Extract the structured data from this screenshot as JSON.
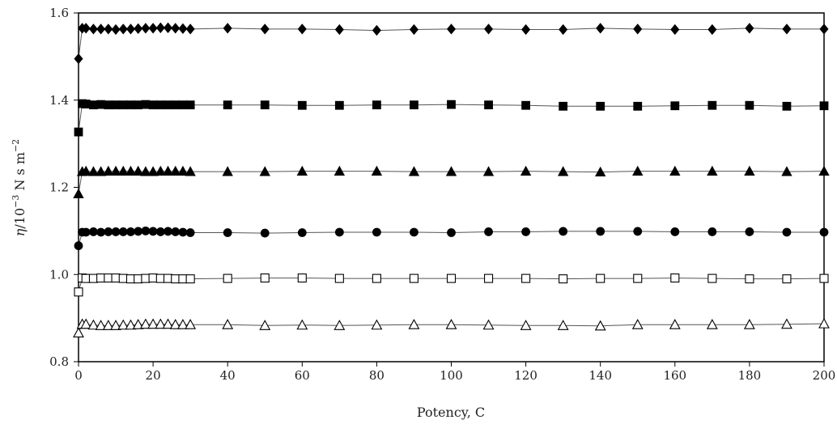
{
  "chart_data": {
    "type": "scatter",
    "xlabel": "Potency, C",
    "ylabel_parts": {
      "symbol": "η",
      "unit": "/10",
      "exp1": "−3",
      "mid": " N s m",
      "exp2": "−2"
    },
    "xlim": [
      0,
      200
    ],
    "ylim": [
      0.8,
      1.6
    ],
    "xticks": [
      "0",
      "20",
      "40",
      "60",
      "80",
      "100",
      "120",
      "140",
      "160",
      "180",
      "200"
    ],
    "yticks": [
      "0.8",
      "1.0",
      "1.2",
      "1.4",
      "1.6"
    ],
    "grid": false,
    "legend": "none",
    "x": [
      0,
      1,
      2,
      4,
      6,
      8,
      10,
      12,
      14,
      16,
      18,
      20,
      22,
      24,
      26,
      28,
      30,
      40,
      50,
      60,
      70,
      80,
      90,
      100,
      110,
      120,
      130,
      140,
      150,
      160,
      170,
      180,
      190,
      200
    ],
    "series": [
      {
        "marker": "filled-diamond",
        "values": [
          1.495,
          1.565,
          1.565,
          1.563,
          1.563,
          1.563,
          1.562,
          1.563,
          1.563,
          1.564,
          1.565,
          1.565,
          1.566,
          1.566,
          1.565,
          1.564,
          1.563,
          1.565,
          1.563,
          1.563,
          1.562,
          1.56,
          1.562,
          1.563,
          1.563,
          1.562,
          1.562,
          1.565,
          1.563,
          1.562,
          1.562,
          1.565,
          1.563,
          1.563
        ]
      },
      {
        "marker": "filled-square",
        "values": [
          1.327,
          1.392,
          1.391,
          1.389,
          1.39,
          1.389,
          1.389,
          1.389,
          1.389,
          1.389,
          1.39,
          1.389,
          1.389,
          1.389,
          1.389,
          1.389,
          1.389,
          1.389,
          1.389,
          1.388,
          1.388,
          1.389,
          1.389,
          1.39,
          1.389,
          1.388,
          1.386,
          1.386,
          1.386,
          1.387,
          1.388,
          1.388,
          1.386,
          1.387
        ]
      },
      {
        "marker": "filled-triangle",
        "values": [
          1.185,
          1.236,
          1.237,
          1.236,
          1.236,
          1.237,
          1.237,
          1.237,
          1.237,
          1.237,
          1.236,
          1.236,
          1.237,
          1.237,
          1.237,
          1.237,
          1.236,
          1.236,
          1.236,
          1.237,
          1.237,
          1.237,
          1.236,
          1.236,
          1.236,
          1.237,
          1.236,
          1.235,
          1.237,
          1.237,
          1.237,
          1.237,
          1.236,
          1.237
        ]
      },
      {
        "marker": "filled-circle",
        "values": [
          1.066,
          1.097,
          1.097,
          1.098,
          1.097,
          1.098,
          1.098,
          1.098,
          1.098,
          1.099,
          1.1,
          1.099,
          1.098,
          1.099,
          1.098,
          1.097,
          1.096,
          1.096,
          1.095,
          1.096,
          1.097,
          1.097,
          1.097,
          1.096,
          1.098,
          1.098,
          1.099,
          1.099,
          1.099,
          1.098,
          1.098,
          1.098,
          1.097,
          1.097
        ]
      },
      {
        "marker": "open-square",
        "values": [
          0.96,
          0.992,
          0.991,
          0.991,
          0.992,
          0.992,
          0.992,
          0.991,
          0.99,
          0.99,
          0.991,
          0.992,
          0.991,
          0.991,
          0.99,
          0.99,
          0.99,
          0.991,
          0.992,
          0.992,
          0.991,
          0.991,
          0.991,
          0.991,
          0.991,
          0.991,
          0.99,
          0.991,
          0.991,
          0.992,
          0.991,
          0.99,
          0.99,
          0.991
        ]
      },
      {
        "marker": "open-triangle",
        "values": [
          0.866,
          0.886,
          0.886,
          0.884,
          0.883,
          0.883,
          0.883,
          0.884,
          0.884,
          0.885,
          0.886,
          0.886,
          0.886,
          0.886,
          0.885,
          0.885,
          0.885,
          0.885,
          0.883,
          0.884,
          0.883,
          0.884,
          0.885,
          0.885,
          0.884,
          0.883,
          0.883,
          0.882,
          0.885,
          0.885,
          0.885,
          0.885,
          0.886,
          0.887
        ]
      }
    ]
  }
}
